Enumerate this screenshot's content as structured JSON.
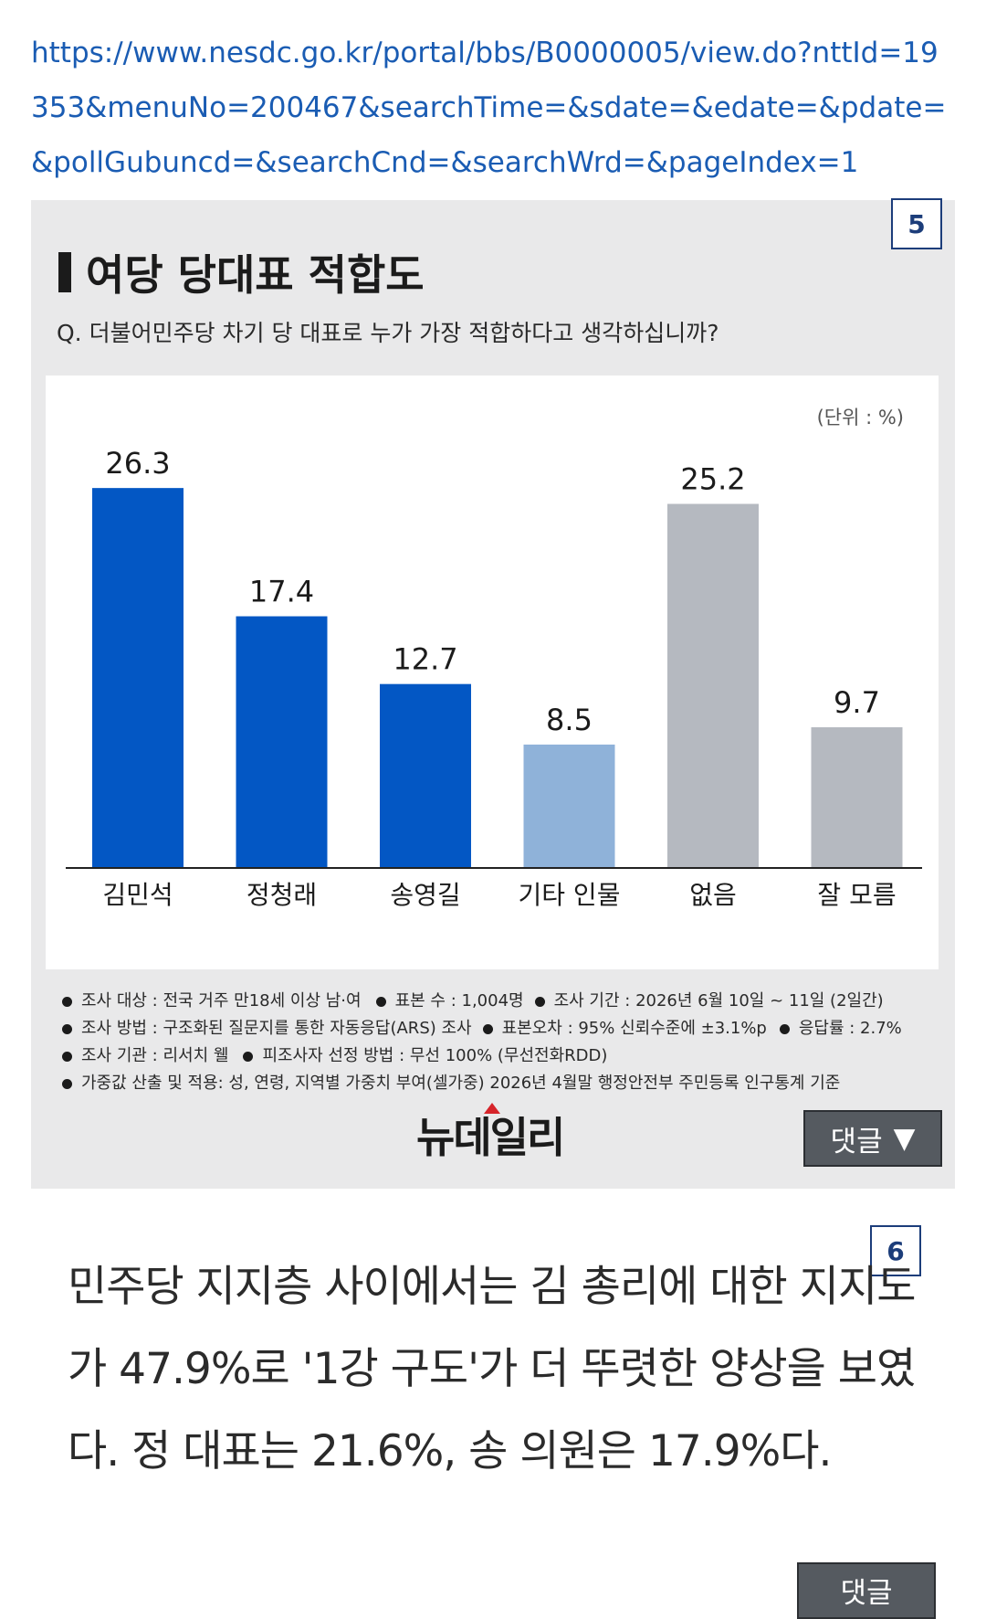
{
  "url": "https://www.nesdc.go.kr/portal/bbs/B0000005/view.do?nttId=19353&menuNo=200467&searchTime=&sdate=&edate=&pdate=&pollGubuncd=&searchCnd=&searchWrd=&pageIndex=1",
  "card": {
    "number": "5",
    "title": "여당 당대표 적합도",
    "question": "Q. 더불어민주당 차기 당 대표로 누가 가장 적합하다고 생각하십니까?",
    "unit": "(단위 : %)",
    "footnotes": [
      [
        "조사 대상 : 전국 거주 만18세 이상 남·여",
        "표본 수 : 1,004명",
        "조사 기간 : 2026년 6월 10일 ~ 11일 (2일간)"
      ],
      [
        "조사 방법 : 구조화된 질문지를 통한 자동응답(ARS) 조사",
        "표본오차 : 95% 신뢰수준에 ±3.1%p",
        "응답률 : 2.7%"
      ],
      [
        "조사 기관 : 리서치 웰",
        "피조사자 선정 방법 : 무선 100% (무선전화RDD)"
      ],
      [
        "가중값 산출 및 적용: 성, 연령, 지역별 가중치 부여(셀가중) 2026년 4월말 행정안전부 주민등록 인구통계 기준"
      ]
    ],
    "logo": "뉴데일리",
    "comment_label": "댓글"
  },
  "second": {
    "number": "6",
    "text": "민주당 지지층 사이에서는 김 총리에 대한 지지도가 47.9%로 '1강 구도'가 더 뚜렷한 양상을 보였다. 정 대표는 21.6%, 송 의원은 17.9%다.",
    "comment_label": "댓글"
  },
  "chart_data": {
    "type": "bar",
    "title": "여당 당대표 적합도",
    "categories": [
      "김민석",
      "정청래",
      "송영길",
      "기타 인물",
      "없음",
      "잘 모름"
    ],
    "values": [
      26.3,
      17.4,
      12.7,
      8.5,
      25.2,
      9.7
    ],
    "value_labels": [
      "26.3",
      "17.4",
      "12.7",
      "8.5",
      "25.2",
      "9.7"
    ],
    "colors": [
      "#0357c4",
      "#0357c4",
      "#0357c4",
      "#8fb2d9",
      "#b5b9c0",
      "#b5b9c0"
    ],
    "unit": "%",
    "ylim": [
      0,
      30
    ],
    "grid": false,
    "legend": "none"
  }
}
